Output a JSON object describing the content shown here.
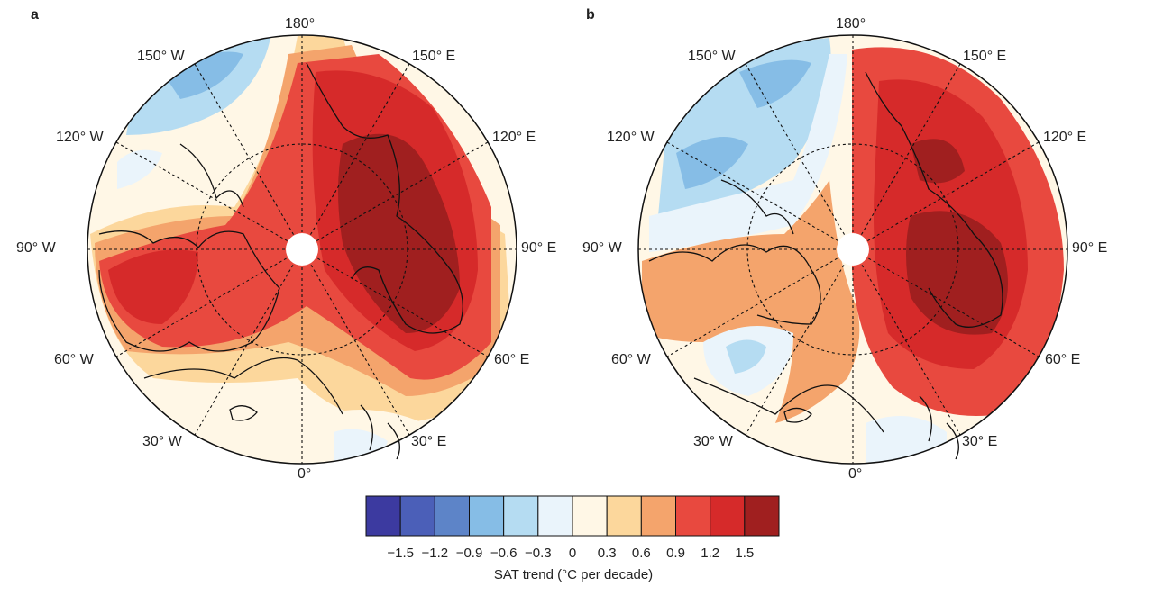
{
  "panels": [
    {
      "letter": "a",
      "labels": {
        "top": "180°",
        "bottom": "0°",
        "left": "90° W",
        "right": "90° E",
        "ul_outer": "150° W",
        "ul_inner": "120° W",
        "ur_outer": "150° E",
        "ur_inner": "120° E",
        "ll_inner": "60° W",
        "ll_outer": "30° W",
        "lr_inner": "60° E",
        "lr_outer": "30° E"
      }
    },
    {
      "letter": "b",
      "labels": {
        "top": "180°",
        "bottom": "0°",
        "left": "90° W",
        "right": "90° E",
        "ul_outer": "150° W",
        "ul_inner": "120° W",
        "ur_outer": "150° E",
        "ur_inner": "120° E",
        "ll_inner": "60° W",
        "ll_outer": "30° W",
        "lr_inner": "60° E",
        "lr_outer": "30° E"
      }
    }
  ],
  "colorbar": {
    "title": "SAT trend (°C per decade)",
    "ticks": [
      "−1.5",
      "−1.2",
      "−0.9",
      "−0.6",
      "−0.3",
      "0",
      "0.3",
      "0.6",
      "0.9",
      "1.2",
      "1.5"
    ],
    "colors": [
      "#3c3aa0",
      "#4b5fb8",
      "#5d84c8",
      "#86bde6",
      "#b5dcf2",
      "#eaf4fb",
      "#fff7e6",
      "#fcd79c",
      "#f4a46c",
      "#e8493f",
      "#d62a2a",
      "#a01f1f"
    ]
  }
}
